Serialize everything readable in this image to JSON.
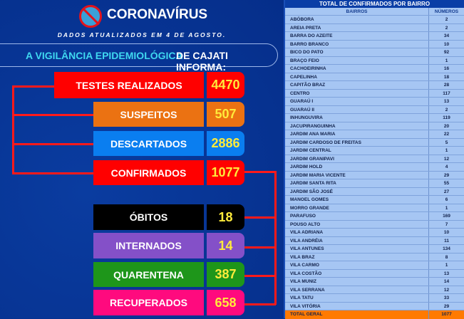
{
  "header": {
    "title": "CORONAVÍRUS",
    "subtitle": "DADOS ATUALIZADOS EM 4 DE AGOSTO.",
    "banner_highlight": "A VIGILÂNCIA EPIDEMIOLÓGICA",
    "banner_rest": "DE CAJATI INFORMA:",
    "logo_icon": "no-virus-icon"
  },
  "stats": [
    {
      "label": "TESTES REALIZADOS",
      "value": "4470",
      "color": "#ff0000"
    },
    {
      "label": "SUSPEITOS",
      "value": "507",
      "color": "#eb7212"
    },
    {
      "label": "DESCARTADOS",
      "value": "2886",
      "color": "#0a7ef0"
    },
    {
      "label": "CONFIRMADOS",
      "value": "1077",
      "color": "#ff0000"
    },
    {
      "label": "ÓBITOS",
      "value": "18",
      "color": "#000000"
    },
    {
      "label": "INTERNADOS",
      "value": "14",
      "color": "#8450c8"
    },
    {
      "label": "QUARENTENA",
      "value": "387",
      "color": "#1e961a"
    },
    {
      "label": "RECUPERADOS",
      "value": "658",
      "color": "#ff0a7e"
    }
  ],
  "table": {
    "title": "TOTAL DE CONFIRMADOS POR BAIRRO",
    "col1": "BAIRROS",
    "col2": "NÚMEROS",
    "rows": [
      [
        "ABÓBORA",
        "2"
      ],
      [
        "AREIA PRETA",
        "2"
      ],
      [
        "BARRA DO AZEITE",
        "34"
      ],
      [
        "BARRO BRANCO",
        "10"
      ],
      [
        "BICO DO PATO",
        "92"
      ],
      [
        "BRAÇO FEIO",
        "1"
      ],
      [
        "CACHOEIRINHA",
        "16"
      ],
      [
        "CAPELINHA",
        "18"
      ],
      [
        "CAPITÃO BRAZ",
        "28"
      ],
      [
        "CENTRO",
        "117"
      ],
      [
        "GUARAÚ I",
        "13"
      ],
      [
        "GUARAÚ II",
        "2"
      ],
      [
        "INHUNGUVIRA",
        "119"
      ],
      [
        "JACUPIRANGUINHA",
        "20"
      ],
      [
        "JARDIM ANA MARIA",
        "22"
      ],
      [
        "JARDIM CARDOSO DE FREITAS",
        "5"
      ],
      [
        "JARDIM CENTRAL",
        "1"
      ],
      [
        "JARDIM GRANIPAVI",
        "12"
      ],
      [
        "JARDIM HOLD",
        "4"
      ],
      [
        "JARDIM MARIA VICENTE",
        "29"
      ],
      [
        "JARDIM SANTA RITA",
        "55"
      ],
      [
        "JARDIM SÃO JOSÉ",
        "27"
      ],
      [
        "MANOEL GOMES",
        "6"
      ],
      [
        "MORRO GRANDE",
        "1"
      ],
      [
        "PARAFUSO",
        "169"
      ],
      [
        "POUSO ALTO",
        "7"
      ],
      [
        "VILA ADRIANA",
        "10"
      ],
      [
        "VILA ANDRÉIA",
        "11"
      ],
      [
        "VILA ANTUNES",
        "134"
      ],
      [
        "VILA BRAZ",
        "8"
      ],
      [
        "VILA CARMO",
        "1"
      ],
      [
        "VILA COSTÃO",
        "13"
      ],
      [
        "VILA MUNIZ",
        "14"
      ],
      [
        "VILA SERRANA",
        "12"
      ],
      [
        "VILA TATU",
        "33"
      ],
      [
        "VILA VITÓRIA",
        "29"
      ]
    ],
    "total_label": "TOTAL GERAL",
    "total_value": "1077"
  }
}
